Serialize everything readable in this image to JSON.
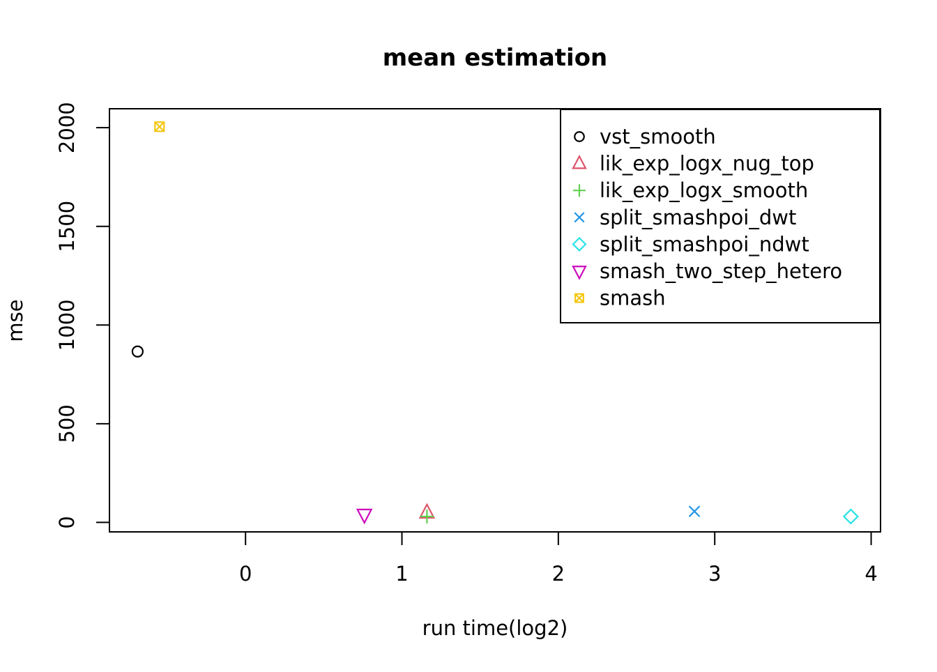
{
  "chart_data": {
    "type": "scatter",
    "title": "mean estimation",
    "xlabel": "run time(log2)",
    "ylabel": "mse",
    "xticks": [
      0,
      1,
      2,
      3,
      4
    ],
    "yticks": [
      0,
      500,
      1000,
      1500,
      2000
    ],
    "xlim": [
      -0.87,
      4.06
    ],
    "ylim": [
      -48,
      2096
    ],
    "grid": false,
    "legend_position": "top-right",
    "series": [
      {
        "name": "vst_smooth",
        "marker": "circle",
        "color": "#000000",
        "points": [
          {
            "x": -0.69,
            "y": 866
          }
        ]
      },
      {
        "name": "lik_exp_logx_nug_top",
        "marker": "triangle-up",
        "color": "#DF536B",
        "points": [
          {
            "x": 1.16,
            "y": 50
          }
        ]
      },
      {
        "name": "lik_exp_logx_smooth",
        "marker": "plus",
        "color": "#61D04F",
        "points": [
          {
            "x": 1.16,
            "y": 30
          }
        ]
      },
      {
        "name": "split_smashpoi_dwt",
        "marker": "x",
        "color": "#2297E6",
        "points": [
          {
            "x": 2.87,
            "y": 56
          }
        ]
      },
      {
        "name": "split_smashpoi_ndwt",
        "marker": "diamond",
        "color": "#28E2E5",
        "points": [
          {
            "x": 3.87,
            "y": 30
          }
        ]
      },
      {
        "name": "smash_two_step_hetero",
        "marker": "triangle-down",
        "color": "#CD0BBC",
        "points": [
          {
            "x": 0.76,
            "y": 39
          }
        ]
      },
      {
        "name": "smash",
        "marker": "square-x",
        "color": "#F5C710",
        "points": [
          {
            "x": -0.55,
            "y": 2005
          }
        ]
      }
    ],
    "colors": {
      "foreground": "#000000",
      "background": "#ffffff"
    }
  }
}
